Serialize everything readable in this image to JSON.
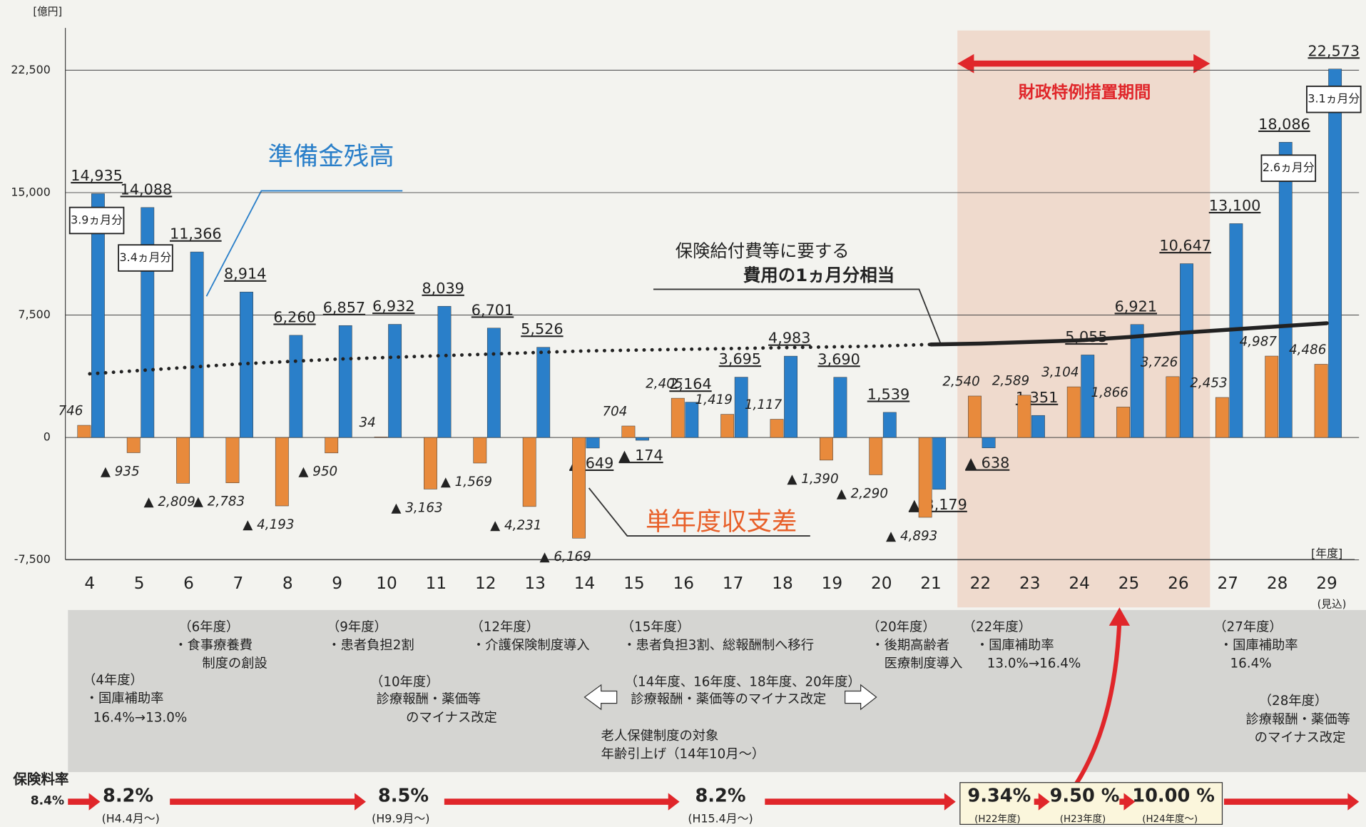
{
  "chart_data": {
    "type": "bar",
    "unit_label": "[億円]",
    "x_unit_label": "[年度]",
    "x_note": "(見込)",
    "categories": [
      "4",
      "5",
      "6",
      "7",
      "8",
      "9",
      "10",
      "11",
      "12",
      "13",
      "14",
      "15",
      "16",
      "17",
      "18",
      "19",
      "20",
      "21",
      "22",
      "23",
      "24",
      "25",
      "26",
      "27",
      "28",
      "29"
    ],
    "series": [
      {
        "name": "準備金残高",
        "color": "#2a7fc9",
        "values": [
          14935,
          14088,
          11366,
          8914,
          6260,
          6857,
          6932,
          8039,
          6701,
          5526,
          -649,
          -174,
          2164,
          3695,
          4983,
          3690,
          1539,
          -3179,
          -638,
          1351,
          5055,
          6921,
          10647,
          13100,
          18086,
          22573
        ],
        "value_labels": [
          "14,935",
          "14,088",
          "11,366",
          "8,914",
          "6,260",
          "6,857",
          "6,932",
          "8,039",
          "6,701",
          "5,526",
          "▲ 649",
          "▲ 174",
          "2,164",
          "3,695",
          "4,983",
          "3,690",
          "1,539",
          "▲ 3,179",
          "▲ 638",
          "1,351",
          "5,055",
          "6,921",
          "10,647",
          "13,100",
          "18,086",
          "22,573"
        ]
      },
      {
        "name": "単年度収支差",
        "color": "#e88a3c",
        "values": [
          746,
          -935,
          -2809,
          -2783,
          -4193,
          -950,
          34,
          -3163,
          -1569,
          -4231,
          -6169,
          704,
          2405,
          1419,
          1117,
          -1390,
          -2290,
          -4893,
          2540,
          2589,
          3104,
          1866,
          3726,
          2453,
          4987,
          4486
        ],
        "value_labels": [
          "746",
          "▲ 935",
          "▲ 2,809",
          "▲ 2,783",
          "▲ 4,193",
          "▲ 950",
          "34",
          "▲ 3,163",
          "▲ 1,569",
          "▲ 4,231",
          "▲ 6,169",
          "704",
          "2,405",
          "1,419",
          "1,117",
          "▲ 1,390",
          "▲ 2,290",
          "▲ 4,893",
          "2,540",
          "2,589",
          "3,104",
          "1,866",
          "3,726",
          "2,453",
          "4,987",
          "4,486"
        ]
      }
    ],
    "line": {
      "label": [
        "保険給付費等に要する",
        "費用の1ヵ月分相当"
      ],
      "color": "#222222",
      "dotted": [
        3900,
        4100,
        4300,
        4500,
        4650,
        4800,
        4900,
        5000,
        5100,
        5200,
        5300,
        5350,
        5400,
        5450,
        5500,
        5550,
        5600,
        5700,
        null,
        null,
        null,
        null,
        null,
        null,
        null,
        null
      ],
      "solid": [
        null,
        null,
        null,
        null,
        null,
        null,
        null,
        null,
        null,
        null,
        null,
        null,
        null,
        null,
        null,
        null,
        null,
        5700,
        5750,
        5850,
        5950,
        6150,
        6400,
        6600,
        6800,
        7000
      ]
    },
    "month_ratios": [
      "3.9ヵ月分",
      "3.4ヵ月分",
      "2.6ヵ月分",
      "3.1ヵ月分"
    ],
    "period_label": "財政特例措置期間",
    "ylim": [
      -7500,
      25000
    ],
    "yticks": [
      {
        "value": -7500,
        "label": "-7,500"
      },
      0,
      {
        "value": 7500,
        "label": "7,500"
      },
      {
        "value": 15000,
        "label": "15,000"
      },
      {
        "value": 22500,
        "label": "22,500"
      }
    ],
    "grid": true
  },
  "notes": [
    "（6年度）",
    "・食事療養費",
    "制度の創設",
    "（4年度）",
    "・国庫補助率",
    "16.4%→13.0%",
    "（9年度）",
    "・患者負担2割",
    "（10年度）",
    "診療報酬・薬価等",
    "のマイナス改定",
    "（12年度）",
    "・介護保険制度導入",
    "（15年度）",
    "・患者負担3割、総報酬制へ移行",
    "（14年度、16年度、18年度、20年度）",
    "診療報酬・薬価等のマイナス改定",
    "老人保健制度の対象",
    "年齢引上げ（14年10月～）",
    "（20年度）",
    "・後期高齢者",
    "医療制度導入",
    "（22年度）",
    "・国庫補助率",
    "13.0%→16.4%",
    "（27年度）",
    "・国庫補助率",
    "16.4%",
    "（28年度）",
    "診療報酬・薬価等",
    "のマイナス改定"
  ],
  "rate": {
    "title": "保険料率",
    "initial": "8.4%",
    "steps": [
      {
        "rate": "8.2%",
        "from": "(H4.4月～)"
      },
      {
        "rate": "8.5%",
        "from": "(H9.9月～)"
      },
      {
        "rate": "8.2%",
        "from": "(H15.4月～)"
      },
      {
        "rate": "9.34%",
        "from": "(H22年度)"
      },
      {
        "rate": "9.50 %",
        "from": "(H23年度)"
      },
      {
        "rate": "10.00 %",
        "from": "(H24年度～)"
      }
    ]
  }
}
